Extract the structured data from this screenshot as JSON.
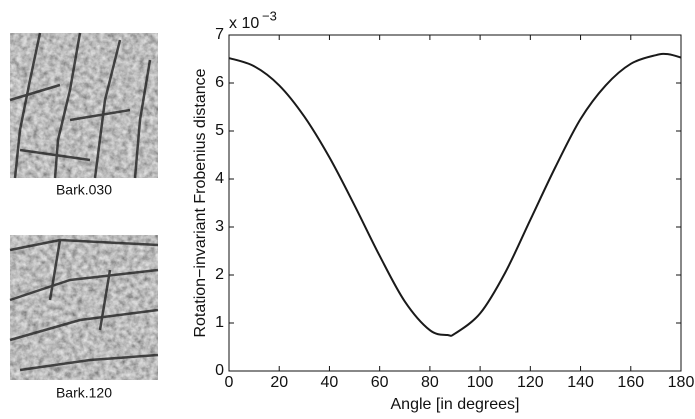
{
  "images": [
    {
      "label": "Bark.030"
    },
    {
      "label": "Bark.120"
    }
  ],
  "chart_data": {
    "type": "line",
    "xlabel": "Angle [in degrees]",
    "ylabel": "Rotation−invariant Frobenius distance",
    "y_multiplier": "x 10",
    "y_exponent": "−3",
    "x": [
      0,
      10,
      20,
      30,
      40,
      50,
      60,
      70,
      80,
      87,
      90,
      100,
      110,
      120,
      130,
      140,
      150,
      160,
      170,
      175,
      180
    ],
    "series": [
      {
        "color": "#1a1a1a",
        "values": [
          6.52,
          6.35,
          5.95,
          5.3,
          4.45,
          3.45,
          2.4,
          1.45,
          0.85,
          0.75,
          0.78,
          1.2,
          2.05,
          3.15,
          4.25,
          5.25,
          5.95,
          6.4,
          6.58,
          6.6,
          6.53
        ]
      }
    ],
    "xlim": [
      0,
      180
    ],
    "xticks": [
      0,
      20,
      40,
      60,
      80,
      100,
      120,
      140,
      160,
      180
    ],
    "ylim": [
      0,
      7
    ],
    "yticks": [
      0,
      1,
      2,
      3,
      4,
      5,
      6,
      7
    ],
    "grid": false
  }
}
